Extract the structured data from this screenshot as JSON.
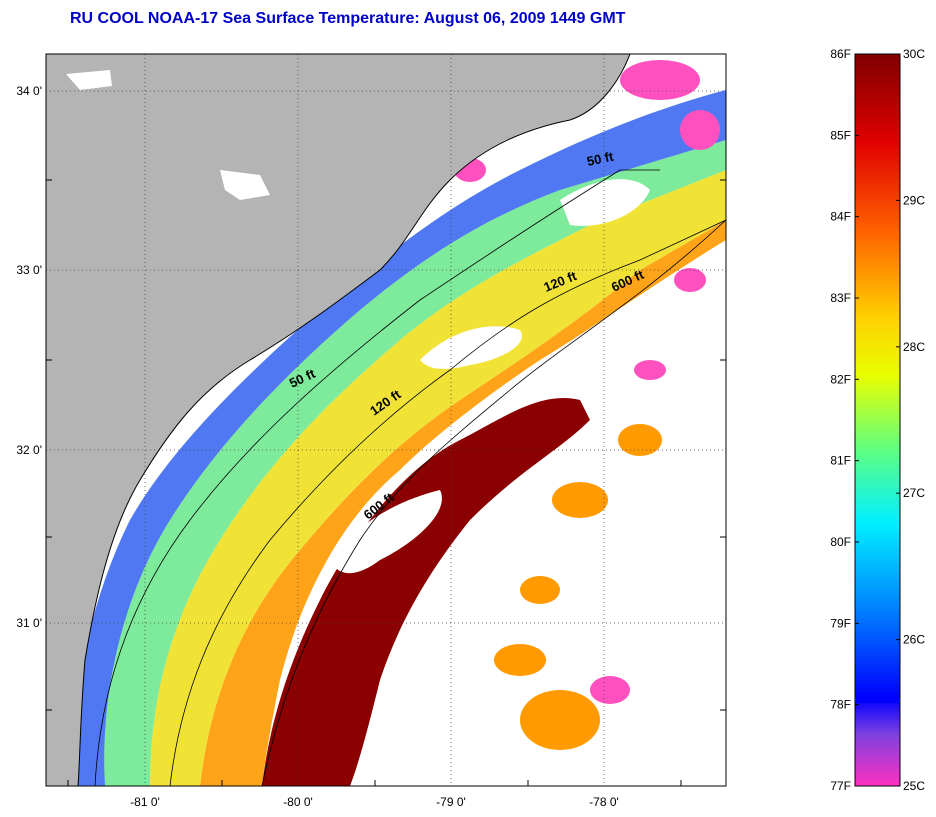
{
  "title": "RU COOL  NOAA-17  Sea Surface Temperature:  August 06, 2009 1449 GMT",
  "map": {
    "lon_ticks": [
      "-81 0'",
      "-80 0'",
      "-79 0'",
      "-78 0'"
    ],
    "lat_ticks": [
      "34 0'",
      "33 0'",
      "32 0'",
      "31 0'"
    ],
    "contours": [
      {
        "label": "50 ft"
      },
      {
        "label": "50 ft"
      },
      {
        "label": "120 ft"
      },
      {
        "label": "120 ft"
      },
      {
        "label": "600 ft"
      },
      {
        "label": "600 ft"
      }
    ],
    "colors": {
      "land": "#b4b4b4",
      "no_data": "#ffffff",
      "warm_core": "#8b0000"
    }
  },
  "colorbar": {
    "fahrenheit_labels": [
      "86F",
      "85F",
      "84F",
      "83F",
      "82F",
      "81F",
      "80F",
      "79F",
      "78F",
      "77F"
    ],
    "celsius_labels": [
      "30C",
      "29C",
      "28C",
      "27C",
      "26C",
      "25C"
    ],
    "range_f": [
      77,
      86
    ],
    "range_c": [
      25,
      30
    ]
  }
}
